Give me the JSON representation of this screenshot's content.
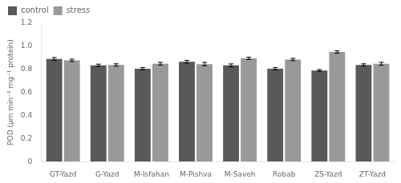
{
  "chart_data": {
    "type": "bar",
    "ylabel": "POD (μm min⁻¹ mg⁻¹ protein)",
    "categories": [
      "GT-Yazd",
      "G-Yazd",
      "M-Isfahan",
      "M-Pishva",
      "M-Saveh",
      "Robab",
      "ZS-Yazd",
      "ZT-Yazd"
    ],
    "series": [
      {
        "name": "control",
        "color": "#595959",
        "values": [
          0.89,
          0.835,
          0.805,
          0.865,
          0.835,
          0.805,
          0.79,
          0.838
        ],
        "errors": [
          0.012,
          0.01,
          0.01,
          0.012,
          0.012,
          0.01,
          0.008,
          0.01
        ]
      },
      {
        "name": "stress",
        "color": "#999999",
        "values": [
          0.878,
          0.838,
          0.848,
          0.845,
          0.895,
          0.885,
          0.95,
          0.848
        ],
        "errors": [
          0.01,
          0.01,
          0.012,
          0.015,
          0.01,
          0.01,
          0.01,
          0.013
        ]
      }
    ],
    "ylim": [
      0,
      1.2
    ],
    "yticks": [
      0,
      0.2,
      0.4,
      0.6,
      0.8,
      {
        "value": 1.0,
        "label": "1.0"
      },
      1.2
    ],
    "grid": false,
    "legend": "upper left"
  }
}
